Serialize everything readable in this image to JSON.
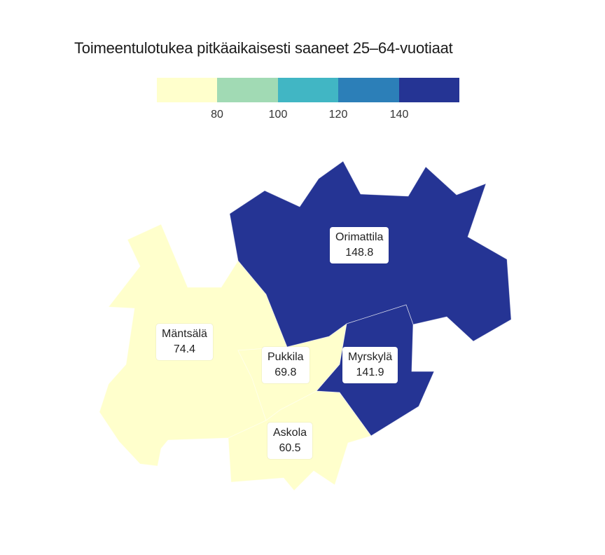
{
  "title": "Toimeentulotukea pitkäaikaisesti saaneet 25–64-vuotiaat",
  "legend": {
    "colors": [
      "#ffffcc",
      "#a1dab4",
      "#41b6c4",
      "#2c7fb8",
      "#253494"
    ],
    "ticks": [
      "80",
      "100",
      "120",
      "140"
    ]
  },
  "regions": [
    {
      "name": "Orimattila",
      "value": "148.8",
      "color": "#253494"
    },
    {
      "name": "Myrskylä",
      "value": "141.9",
      "color": "#253494"
    },
    {
      "name": "Mäntsälä",
      "value": "74.4",
      "color": "#ffffcc"
    },
    {
      "name": "Pukkila",
      "value": "69.8",
      "color": "#ffffcc"
    },
    {
      "name": "Askola",
      "value": "60.5",
      "color": "#ffffcc"
    }
  ]
}
